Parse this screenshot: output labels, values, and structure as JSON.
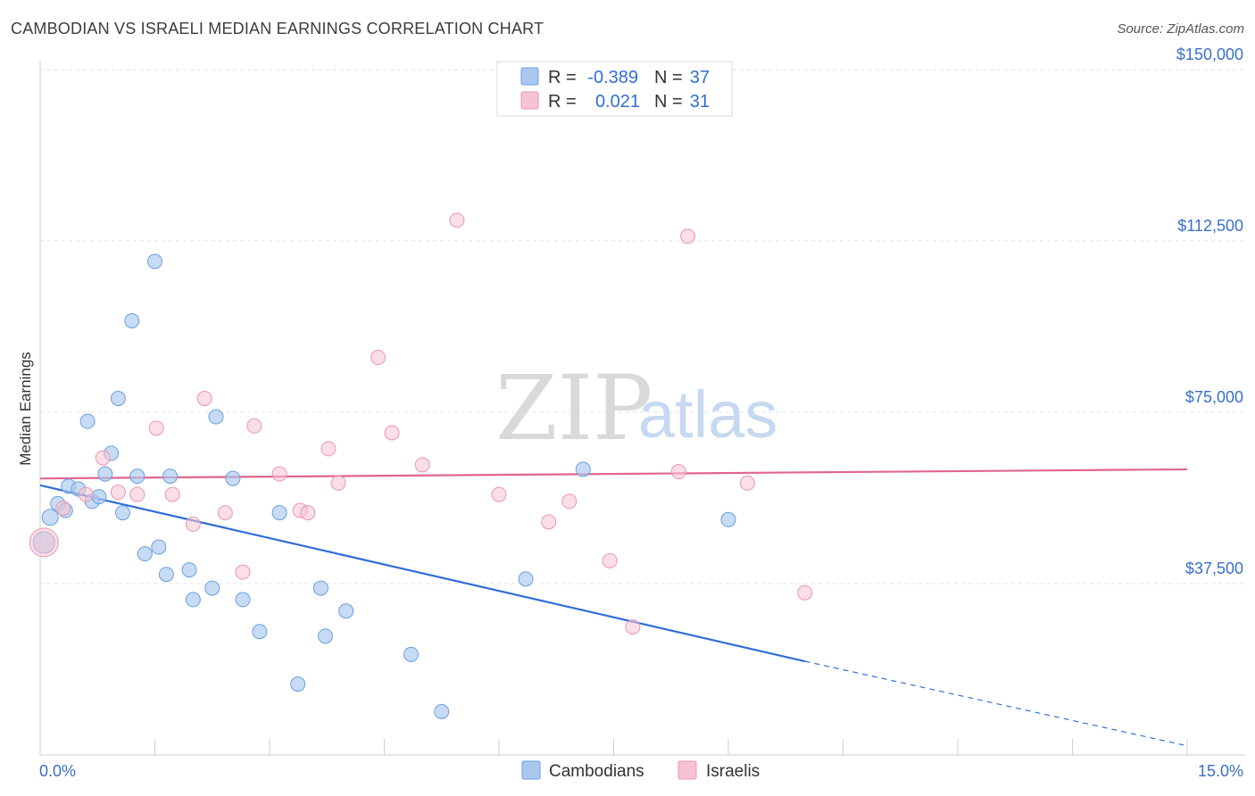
{
  "header": {
    "title": "CAMBODIAN VS ISRAELI MEDIAN EARNINGS CORRELATION CHART",
    "source": "Source: ZipAtlas.com"
  },
  "watermark": {
    "zip": "ZIP",
    "atlas": "atlas"
  },
  "legend": {
    "rows": [
      {
        "r_label": "R =",
        "r_value": "-0.389",
        "n_label": "N =",
        "n_value": "37",
        "color": "#a9c8f0"
      },
      {
        "r_label": "R =",
        "r_value": "0.021",
        "n_label": "N =",
        "n_value": "31",
        "color": "#f5b8cb"
      }
    ]
  },
  "bottom_legend": [
    "Cambodians",
    "Israelis"
  ],
  "colors": {
    "blue_fill": "#a9c8f0",
    "blue_stroke": "#6a9ee0",
    "blue_line": "#2f6fd6",
    "pink_fill": "#f7c3d2",
    "pink_stroke": "#e996b0",
    "pink_line": "#e0668e",
    "grid": "#e3e3e3",
    "axis_label": "#3a6fc9"
  },
  "chart_data": {
    "type": "scatter",
    "title": "CAMBODIAN VS ISRAELI MEDIAN EARNINGS CORRELATION CHART",
    "xlabel": "",
    "ylabel": "Median Earnings",
    "xlim": [
      0,
      15
    ],
    "ylim": [
      0,
      157000
    ],
    "x_tick_labels": [
      "0.0%",
      "15.0%"
    ],
    "y_ticks": [
      37500,
      75000,
      112500,
      150000
    ],
    "y_tick_labels": [
      "$37,500",
      "$75,000",
      "$112,500",
      "$150,000"
    ],
    "series": [
      {
        "name": "Cambodians",
        "points": [
          [
            0.05,
            46500,
            12
          ],
          [
            0.13,
            52000,
            9
          ],
          [
            0.23,
            55000,
            8
          ],
          [
            0.33,
            53500,
            8
          ],
          [
            0.37,
            58800,
            8
          ],
          [
            0.5,
            58200,
            8
          ],
          [
            0.62,
            73000,
            8
          ],
          [
            0.68,
            55500,
            8
          ],
          [
            0.77,
            56500,
            8
          ],
          [
            0.85,
            61500,
            8
          ],
          [
            0.93,
            66000,
            8
          ],
          [
            1.02,
            78000,
            8
          ],
          [
            1.08,
            53000,
            8
          ],
          [
            1.2,
            95000,
            8
          ],
          [
            1.27,
            61000,
            8
          ],
          [
            1.37,
            44000,
            8
          ],
          [
            1.5,
            108000,
            8
          ],
          [
            1.55,
            45500,
            8
          ],
          [
            1.65,
            39500,
            8
          ],
          [
            1.7,
            61000,
            8
          ],
          [
            1.95,
            40500,
            8
          ],
          [
            2.0,
            34000,
            8
          ],
          [
            2.25,
            36500,
            8
          ],
          [
            2.3,
            74000,
            8
          ],
          [
            2.52,
            60500,
            8
          ],
          [
            2.65,
            34000,
            8
          ],
          [
            2.87,
            27000,
            8
          ],
          [
            3.13,
            53000,
            8
          ],
          [
            3.37,
            15500,
            8
          ],
          [
            3.67,
            36500,
            8
          ],
          [
            3.73,
            26000,
            8
          ],
          [
            4.0,
            31500,
            8
          ],
          [
            4.85,
            22000,
            8
          ],
          [
            5.25,
            9500,
            8
          ],
          [
            6.35,
            38500,
            8
          ],
          [
            7.1,
            62500,
            8
          ],
          [
            9.0,
            51500,
            8
          ]
        ]
      },
      {
        "name": "Israelis",
        "points": [
          [
            0.05,
            46500,
            16
          ],
          [
            0.3,
            54000,
            8
          ],
          [
            0.6,
            57000,
            8
          ],
          [
            0.82,
            65000,
            8
          ],
          [
            1.02,
            57500,
            8
          ],
          [
            1.27,
            57000,
            8
          ],
          [
            1.52,
            71500,
            8
          ],
          [
            1.73,
            57000,
            8
          ],
          [
            2.0,
            50500,
            8
          ],
          [
            2.15,
            78000,
            8
          ],
          [
            2.42,
            53000,
            8
          ],
          [
            2.65,
            40000,
            8
          ],
          [
            2.8,
            72000,
            8
          ],
          [
            3.13,
            61500,
            8
          ],
          [
            3.4,
            53500,
            8
          ],
          [
            3.5,
            53000,
            8
          ],
          [
            3.77,
            67000,
            8
          ],
          [
            3.9,
            59500,
            8
          ],
          [
            4.42,
            87000,
            8
          ],
          [
            4.6,
            70500,
            8
          ],
          [
            5.0,
            63500,
            8
          ],
          [
            5.45,
            117000,
            8
          ],
          [
            6.0,
            57000,
            8
          ],
          [
            6.65,
            51000,
            8
          ],
          [
            6.92,
            55500,
            8
          ],
          [
            7.45,
            42500,
            8
          ],
          [
            7.75,
            28000,
            8
          ],
          [
            8.35,
            62000,
            8
          ],
          [
            8.47,
            113500,
            8
          ],
          [
            9.25,
            59500,
            8
          ],
          [
            10.0,
            35500,
            8
          ]
        ]
      }
    ],
    "trend_lines": [
      {
        "name": "Cambodians",
        "x_start": 0.0,
        "y_start": 59000,
        "x_end": 10.0,
        "y_end": 20500,
        "dash_to_x": 15.0,
        "dash_to_y": 2000
      },
      {
        "name": "Israelis",
        "x_start": 0.0,
        "y_start": 60500,
        "x_end": 15.0,
        "y_end": 62500
      }
    ]
  }
}
